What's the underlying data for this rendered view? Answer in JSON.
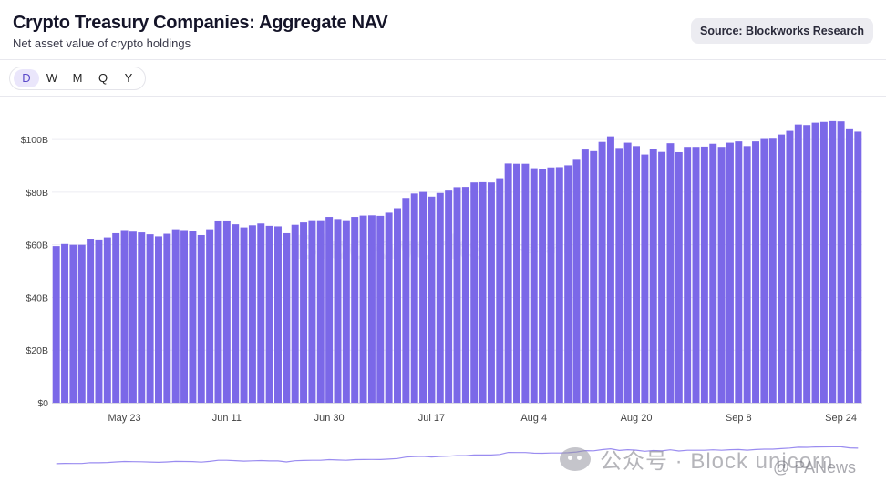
{
  "header": {
    "title": "Crypto Treasury Companies: Aggregate NAV",
    "subtitle": "Net asset value of crypto holdings",
    "source": "Source: Blockworks Research"
  },
  "ranges": [
    {
      "label": "D",
      "active": true
    },
    {
      "label": "W",
      "active": false
    },
    {
      "label": "M",
      "active": false
    },
    {
      "label": "Q",
      "active": false
    },
    {
      "label": "Y",
      "active": false
    }
  ],
  "watermarks": {
    "chart": "Blockworks",
    "chart_sub": "Research",
    "wechat": "公众号 · Block unicorn",
    "panews": "@ PANews"
  },
  "colors": {
    "bar": "#7b68e8",
    "grid": "#ececf2",
    "axis_text": "#444444",
    "nav_line": "#9a8cf0"
  },
  "chart_data": {
    "type": "bar",
    "title": "Crypto Treasury Companies: Aggregate NAV",
    "subtitle": "Net asset value of crypto holdings",
    "xlabel": "",
    "ylabel": "",
    "ylim": [
      0,
      108
    ],
    "unit": "B",
    "y_ticks": [
      {
        "value": 0,
        "label": "$0"
      },
      {
        "value": 20,
        "label": "$20B"
      },
      {
        "value": 40,
        "label": "$40B"
      },
      {
        "value": 60,
        "label": "$60B"
      },
      {
        "value": 80,
        "label": "$80B"
      },
      {
        "value": 100,
        "label": "$100B"
      }
    ],
    "x_ticks": [
      {
        "index": 8,
        "label": "May 23"
      },
      {
        "index": 20,
        "label": "Jun 11"
      },
      {
        "index": 32,
        "label": "Jun 30"
      },
      {
        "index": 44,
        "label": "Jul 17"
      },
      {
        "index": 56,
        "label": "Aug 4"
      },
      {
        "index": 68,
        "label": "Aug 20"
      },
      {
        "index": 80,
        "label": "Sep 8"
      },
      {
        "index": 92,
        "label": "Sep 24"
      }
    ],
    "grid": true,
    "legend": "none",
    "series": [
      {
        "name": "Aggregate NAV",
        "values": [
          59.5,
          60.3,
          60.0,
          60.0,
          62.3,
          62.0,
          62.8,
          64.4,
          65.6,
          65.0,
          64.7,
          64.0,
          63.2,
          64.2,
          65.9,
          65.6,
          65.3,
          63.7,
          65.9,
          68.9,
          68.9,
          67.8,
          66.6,
          67.4,
          68.1,
          67.2,
          67.0,
          64.4,
          67.6,
          68.5,
          69.0,
          69.0,
          70.6,
          69.8,
          69.0,
          70.6,
          71.1,
          71.2,
          71.0,
          72.2,
          73.9,
          77.8,
          79.5,
          80.1,
          78.3,
          79.7,
          80.6,
          81.9,
          82.0,
          83.7,
          83.8,
          83.7,
          85.3,
          90.9,
          90.8,
          90.8,
          89.1,
          88.8,
          89.4,
          89.5,
          90.2,
          92.3,
          96.2,
          95.6,
          99.1,
          101.2,
          96.8,
          98.8,
          97.5,
          94.3,
          96.5,
          95.3,
          98.6,
          95.2,
          97.2,
          97.2,
          97.3,
          98.4,
          97.2,
          98.8,
          99.3,
          97.5,
          99.3,
          100.2,
          100.3,
          101.9,
          103.3,
          105.7,
          105.5,
          106.4,
          106.7,
          107.0,
          106.9,
          103.9,
          103.0
        ]
      }
    ]
  }
}
